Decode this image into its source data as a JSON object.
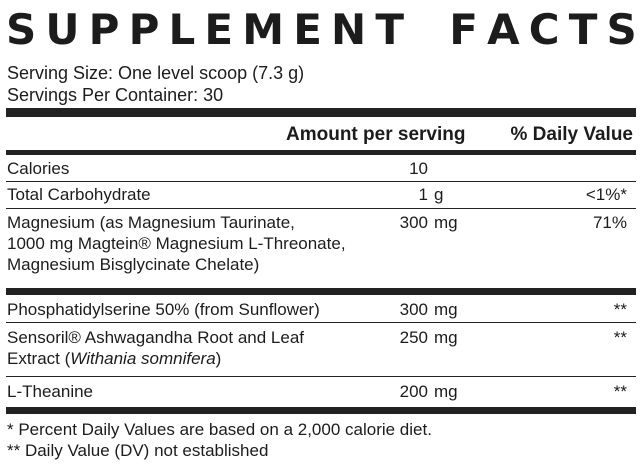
{
  "title_chars": [
    "S",
    "U",
    "P",
    "P",
    "L",
    "E",
    "M",
    "E",
    "N",
    "T",
    " ",
    "F",
    "A",
    "C",
    "T",
    "S"
  ],
  "serving_size": "Serving Size: One level scoop (7.3 g)",
  "servings_per_container": "Servings Per Container: 30",
  "headers": {
    "amount": "Amount per serving",
    "dv": "% Daily Value"
  },
  "rows": [
    {
      "name": [
        "Calories"
      ],
      "amount": "10",
      "unit": "",
      "dv": ""
    },
    {
      "name": [
        "Total Carbohydrate"
      ],
      "amount": "1",
      "unit": "g",
      "dv": "<1%*"
    },
    {
      "name": [
        "Magnesium (as Magnesium Taurinate,",
        "1000 mg Magtein® Magnesium L-Threonate,",
        "Magnesium Bisglycinate Chelate)"
      ],
      "amount": "300",
      "unit": "mg",
      "dv": "71%"
    },
    {
      "name": [
        "Phosphatidylserine 50% (from Sunflower)"
      ],
      "amount": "300",
      "unit": "mg",
      "dv": "**"
    },
    {
      "name": [
        "Sensoril® Ashwagandha Root and Leaf",
        "Extract (Withania somnifera)"
      ],
      "amount": "250",
      "unit": "mg",
      "dv": "**"
    },
    {
      "name": [
        "L-Theanine"
      ],
      "amount": "200",
      "unit": "mg",
      "dv": "**"
    }
  ],
  "footnotes": [
    "* Percent Daily Values are based on a 2,000 calorie diet.",
    "** Daily Value (DV) not established"
  ]
}
